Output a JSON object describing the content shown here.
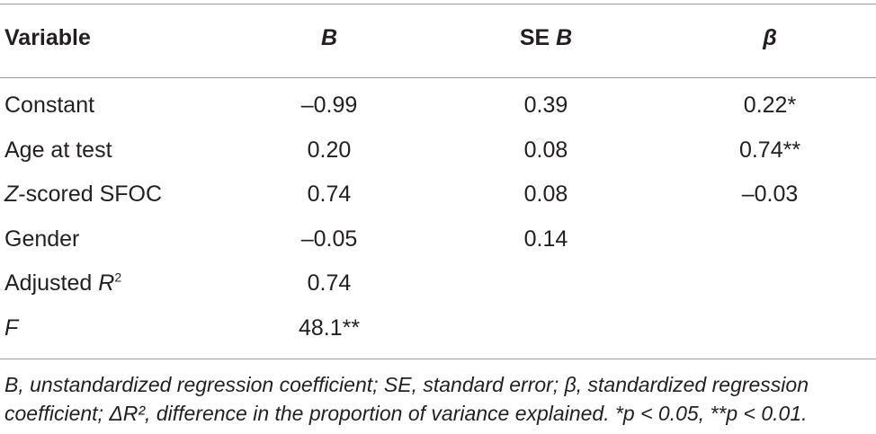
{
  "table": {
    "headers": {
      "variable": "Variable",
      "b": "B",
      "se_b_prefix": "SE ",
      "se_b_italic": "B",
      "beta": "β"
    },
    "rows": [
      {
        "variable_italic": "",
        "variable": "Constant",
        "variable_sup": "",
        "b": "–0.99",
        "se_b": "0.39",
        "beta": "0.22*"
      },
      {
        "variable_italic": "",
        "variable": "Age at test",
        "variable_sup": "",
        "b": "0.20",
        "se_b": "0.08",
        "beta": "0.74**"
      },
      {
        "variable_italic": "Z",
        "variable": "-scored SFOC",
        "variable_sup": "",
        "b": "0.74",
        "se_b": "0.08",
        "beta": "–0.03"
      },
      {
        "variable_italic": "",
        "variable": "Gender",
        "variable_sup": "",
        "b": "–0.05",
        "se_b": "0.14",
        "beta": ""
      },
      {
        "variable_italic": "",
        "variable": "Adjusted ",
        "variable_italic_after": "R",
        "variable_sup": "2",
        "b": "0.74",
        "se_b": "",
        "beta": ""
      },
      {
        "variable_italic": "F",
        "variable": "",
        "variable_sup": "",
        "b": "48.1**",
        "se_b": "",
        "beta": ""
      }
    ],
    "note": {
      "line1": "B, unstandardized regression coefficient; SE, standard error; β, standardized regression",
      "line2": "coefficient; ΔR², difference in the proportion of variance explained.  *p < 0.05, **p < 0.01."
    }
  }
}
